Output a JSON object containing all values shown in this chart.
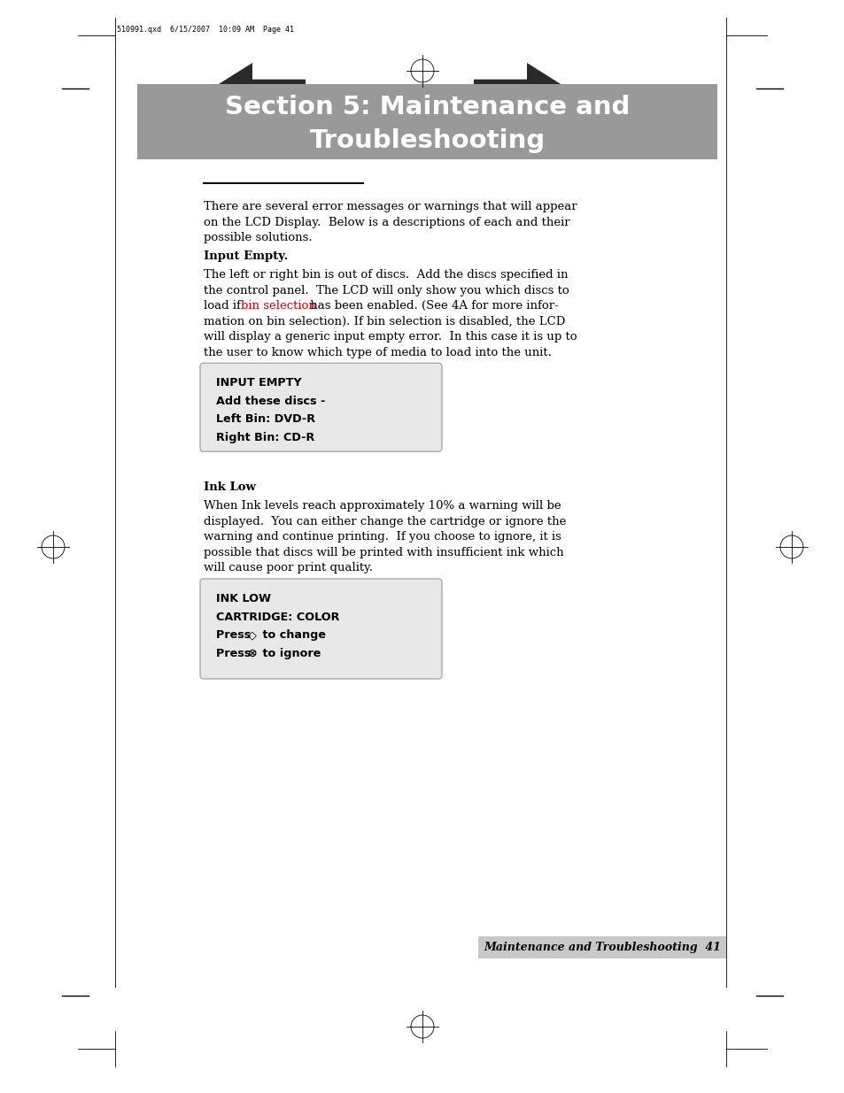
{
  "page_bg": "#ffffff",
  "header_meta": "510991.qxd  6/15/2007  10:09 AM  Page 41",
  "section_title_line1": "Section 5: Maintenance and",
  "section_title_line2": "Troubleshooting",
  "section_bg": "#999999",
  "section_title_color": "#ffffff",
  "intro_text_l1": "There are several error messages or warnings that will appear",
  "intro_text_l2": "on the LCD Display.  Below is a descriptions of each and their",
  "intro_text_l3": "possible solutions.",
  "heading1": "Input Empty.",
  "p1_l1": "The left or right bin is out of discs.  Add the discs specified in",
  "p1_l2": "the control panel.  The LCD will only show you which discs to",
  "p1_l3a": "load if ",
  "p1_l3b": "bin selection",
  "p1_l3c": " has been enabled. (See 4A for more infor-",
  "p1_l4": "mation on bin selection). If bin selection is disabled, the LCD",
  "p1_l5": "will display a generic input empty error.  In this case it is up to",
  "p1_l6": "the user to know which type of media to load into the unit.",
  "bin_sel_color": "#cc0000",
  "box1_lines": [
    "INPUT EMPTY",
    "Add these discs -",
    "Left Bin: DVD-R",
    "Right Bin: CD-R"
  ],
  "heading2": "Ink Low",
  "p2_l1": "When Ink levels reach approximately 10% a warning will be",
  "p2_l2": "displayed.  You can either change the cartridge or ignore the",
  "p2_l3": "warning and continue printing.  If you choose to ignore, it is",
  "p2_l4": "possible that discs will be printed with insufficient ink which",
  "p2_l5": "will cause poor print quality.",
  "box2_l1": "INK LOW",
  "box2_l2": "CARTRIDGE: COLOR",
  "box2_l3a": "Press ",
  "box2_l3b": "◇",
  "box2_l3c": " to change",
  "box2_l4a": "Press ",
  "box2_l4b": "⊗",
  "box2_l4c": " to ignore",
  "footer_text": "Maintenance and Troubleshooting  41",
  "footer_bg": "#c8c8c8",
  "box_bg": "#e8e8e8",
  "box_border": "#aaaaaa"
}
